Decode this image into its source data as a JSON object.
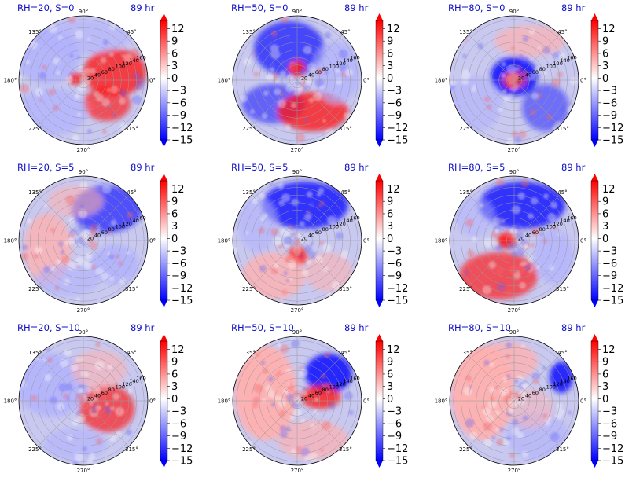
{
  "chart_data": {
    "type": "heatmap",
    "projection": "polar",
    "layout_grid": [
      3,
      3
    ],
    "shared": {
      "angle_tick_labels": [
        "45°",
        "90°",
        "135°",
        "180°",
        "225°",
        "270°",
        "315°",
        "0°"
      ],
      "radial_tick_labels": [
        "20",
        "40",
        "60",
        "80",
        "100",
        "120",
        "140",
        "160"
      ],
      "radial_range": [
        0,
        170
      ],
      "colorbar": {
        "colormap": "bwr",
        "ticks": [
          "12",
          "9",
          "6",
          "3",
          "0",
          "−3",
          "−6",
          "−9",
          "−12",
          "−15"
        ],
        "range": [
          -15,
          14
        ],
        "extend": "both",
        "low_color": "#0000ff",
        "mid_color": "#ffffff",
        "high_color": "#ff0000"
      },
      "grid": true
    },
    "panels": [
      {
        "title": "RH=20, S=0",
        "time": "89 hr"
      },
      {
        "title": "RH=50, S=0",
        "time": "89 hr"
      },
      {
        "title": "RH=80, S=0",
        "time": "89 hr"
      },
      {
        "title": "RH=20, S=5",
        "time": "89 hr"
      },
      {
        "title": "RH=50, S=5",
        "time": "89 hr"
      },
      {
        "title": "RH=80, S=5",
        "time": "89 hr"
      },
      {
        "title": "RH=20, S=10",
        "time": "89 hr"
      },
      {
        "title": "RH=50, S=10",
        "time": "89 hr"
      },
      {
        "title": "RH=80, S=10",
        "time": "89 hr"
      }
    ]
  }
}
